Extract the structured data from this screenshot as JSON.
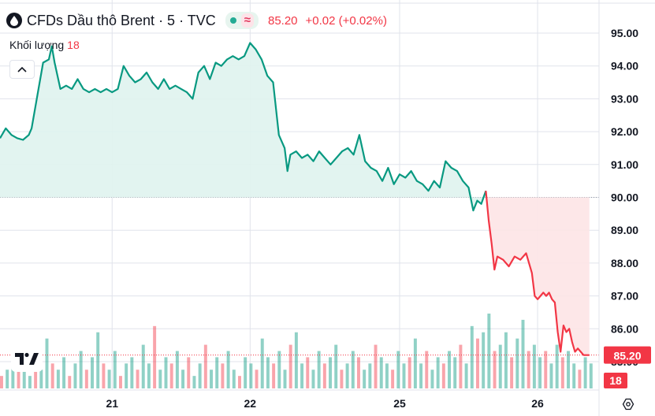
{
  "header": {
    "title": "CFDs Dầu thô Brent · 5 · TVC",
    "wave_icon": "≈",
    "price": "85.20",
    "change": "+0.02 (+0.02%)"
  },
  "volume_legend": {
    "label": "Khối lượng",
    "value": "18"
  },
  "colors": {
    "up": "#089981",
    "down": "#f23645",
    "up_fill": "#dff3ee",
    "down_fill": "#fde4e6",
    "grid": "#e0e3eb",
    "text": "#131722"
  },
  "icons": [
    "symbol-drop-icon",
    "chevron-up-icon",
    "tradingview-logo-icon",
    "settings-icon"
  ],
  "chart_data": {
    "type": "area",
    "title": "CFDs Dầu thô Brent · 5 · TVC",
    "ylim": [
      84.6,
      95.3
    ],
    "y_ticks": [
      "95.00",
      "94.00",
      "93.00",
      "92.00",
      "91.00",
      "90.00",
      "89.00",
      "88.00",
      "87.00",
      "86.00",
      "85.00"
    ],
    "x_ticks": [
      {
        "label": "21",
        "x": 24
      },
      {
        "label": "22",
        "x": 48
      },
      {
        "label": "25",
        "x": 74
      },
      {
        "label": "26",
        "x": 98
      }
    ],
    "x_range": [
      4.5,
      108
    ],
    "baseline": 90.0,
    "last_price_label": "85.20",
    "volume_label": "18",
    "series": [
      {
        "values": [
          [
            4.5,
            91.8
          ],
          [
            5.5,
            92.1
          ],
          [
            6.5,
            91.9
          ],
          [
            7.5,
            91.8
          ],
          [
            8.5,
            91.75
          ],
          [
            9.5,
            91.9
          ],
          [
            10.0,
            92.1
          ],
          [
            11.0,
            93.1
          ],
          [
            12.0,
            94.1
          ],
          [
            13.0,
            94.2
          ],
          [
            13.5,
            94.6
          ],
          [
            14.0,
            94.1
          ],
          [
            15.0,
            93.3
          ],
          [
            16.0,
            93.4
          ],
          [
            17.0,
            93.3
          ],
          [
            18.0,
            93.6
          ],
          [
            19.0,
            93.3
          ],
          [
            20.0,
            93.2
          ],
          [
            21.0,
            93.3
          ],
          [
            22.0,
            93.2
          ],
          [
            23.0,
            93.3
          ],
          [
            24.0,
            93.2
          ],
          [
            25.0,
            93.3
          ],
          [
            26.0,
            94.0
          ],
          [
            27.0,
            93.7
          ],
          [
            28.0,
            93.5
          ],
          [
            29.0,
            93.6
          ],
          [
            30.0,
            93.8
          ],
          [
            31.0,
            93.5
          ],
          [
            32.0,
            93.3
          ],
          [
            33.0,
            93.6
          ],
          [
            34.0,
            93.3
          ],
          [
            35.0,
            93.4
          ],
          [
            36.0,
            93.3
          ],
          [
            37.0,
            93.2
          ],
          [
            38.0,
            93.0
          ],
          [
            39.0,
            93.8
          ],
          [
            40.0,
            94.0
          ],
          [
            41.0,
            93.6
          ],
          [
            42.0,
            94.1
          ],
          [
            43.0,
            94.0
          ],
          [
            44.0,
            94.2
          ],
          [
            45.0,
            94.3
          ],
          [
            46.0,
            94.2
          ],
          [
            47.0,
            94.3
          ],
          [
            48.0,
            94.7
          ],
          [
            49.0,
            94.5
          ],
          [
            50.0,
            94.2
          ],
          [
            51.0,
            93.7
          ],
          [
            52.0,
            93.5
          ],
          [
            53.0,
            91.9
          ],
          [
            54.0,
            91.5
          ],
          [
            54.5,
            90.8
          ],
          [
            55.0,
            91.3
          ],
          [
            56.0,
            91.4
          ],
          [
            57.0,
            91.2
          ],
          [
            58.0,
            91.3
          ],
          [
            59.0,
            91.1
          ],
          [
            60.0,
            91.4
          ],
          [
            61.0,
            91.2
          ],
          [
            62.0,
            91.0
          ],
          [
            63.0,
            91.2
          ],
          [
            64.0,
            91.4
          ],
          [
            65.0,
            91.5
          ],
          [
            66.0,
            91.3
          ],
          [
            67.0,
            91.9
          ],
          [
            68.0,
            91.1
          ],
          [
            69.0,
            90.9
          ],
          [
            70.0,
            90.8
          ],
          [
            71.0,
            90.5
          ],
          [
            72.0,
            90.9
          ],
          [
            73.0,
            90.4
          ],
          [
            74.0,
            90.7
          ],
          [
            75.0,
            90.6
          ],
          [
            76.0,
            90.8
          ],
          [
            77.0,
            90.5
          ],
          [
            78.0,
            90.4
          ],
          [
            79.0,
            90.2
          ],
          [
            80.0,
            90.5
          ],
          [
            81.0,
            90.3
          ],
          [
            82.0,
            91.1
          ],
          [
            83.0,
            90.9
          ],
          [
            84.0,
            90.8
          ],
          [
            85.0,
            90.5
          ],
          [
            86.0,
            90.3
          ],
          [
            86.8,
            89.6
          ],
          [
            87.5,
            89.9
          ],
          [
            88.2,
            89.8
          ],
          [
            89.0,
            90.2
          ]
        ]
      },
      {
        "values": [
          [
            89.0,
            90.2
          ],
          [
            89.5,
            89.3
          ],
          [
            90.0,
            88.6
          ],
          [
            90.5,
            87.8
          ],
          [
            91.0,
            88.2
          ],
          [
            92.0,
            88.1
          ],
          [
            93.0,
            87.9
          ],
          [
            94.0,
            88.2
          ],
          [
            95.0,
            88.1
          ],
          [
            96.0,
            88.3
          ],
          [
            97.0,
            87.7
          ],
          [
            97.5,
            87.0
          ],
          [
            98.0,
            86.9
          ],
          [
            98.5,
            87.0
          ],
          [
            99.0,
            87.1
          ],
          [
            99.5,
            87.0
          ],
          [
            100.0,
            87.1
          ],
          [
            100.5,
            86.9
          ],
          [
            101.0,
            86.8
          ],
          [
            101.5,
            85.9
          ],
          [
            102.0,
            85.3
          ],
          [
            102.5,
            86.1
          ],
          [
            103.0,
            85.9
          ],
          [
            103.5,
            86.0
          ],
          [
            104.0,
            85.6
          ],
          [
            104.5,
            85.3
          ],
          [
            105.0,
            85.4
          ],
          [
            105.5,
            85.3
          ],
          [
            106.0,
            85.2
          ],
          [
            107.0,
            85.2
          ]
        ]
      }
    ],
    "volume": [
      2,
      3,
      5,
      3,
      4,
      2,
      6,
      3,
      8,
      4,
      3,
      5,
      2,
      4,
      6,
      3,
      5,
      9,
      4,
      3,
      6,
      2,
      4,
      5,
      3,
      7,
      4,
      10,
      3,
      5,
      4,
      6,
      3,
      5,
      2,
      4,
      7,
      3,
      5,
      4,
      6,
      3,
      2,
      5,
      4,
      3,
      8,
      5,
      4,
      6,
      3,
      7,
      9,
      4,
      5,
      3,
      6,
      4,
      5,
      7,
      3,
      4,
      6,
      5,
      3,
      4,
      7,
      5,
      4,
      3,
      6,
      4,
      5,
      8,
      4,
      6,
      3,
      5,
      4,
      6,
      5,
      7,
      4,
      10,
      8,
      9,
      12,
      6,
      7,
      9,
      5,
      8,
      11,
      6,
      7,
      5,
      6,
      4,
      7,
      5,
      6,
      4,
      3,
      5,
      4
    ],
    "grid": true
  }
}
